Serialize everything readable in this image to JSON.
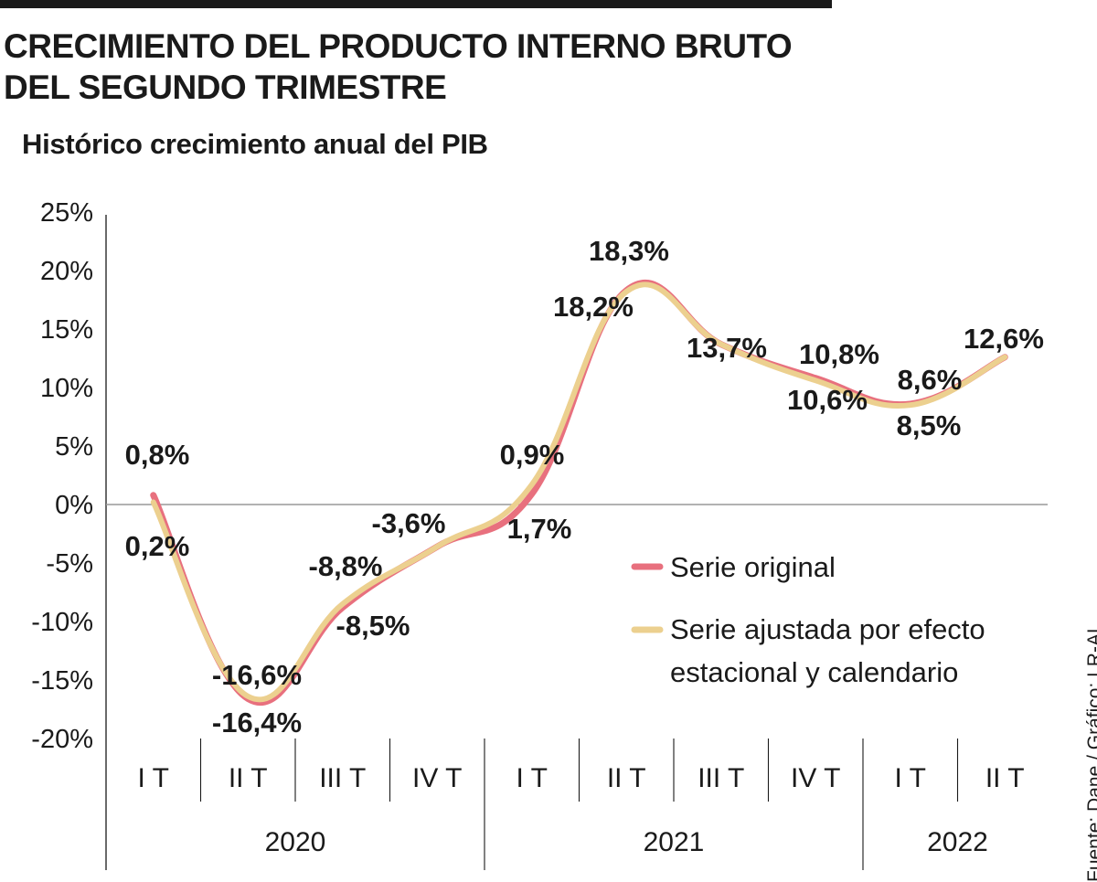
{
  "title": "CRECIMIENTO DEL PRODUCTO INTERNO BRUTO DEL SEGUNDO TRIMESTRE",
  "subtitle": "Histórico crecimiento anual del PIB",
  "source": "Fuente: Dane / Gráfico: LR-AL",
  "chart_data": {
    "type": "line",
    "title": "Histórico crecimiento anual del PIB",
    "categories": [
      "I T",
      "II T",
      "III T",
      "IV T",
      "I T",
      "II T",
      "III T",
      "IV T",
      "I T",
      "II T"
    ],
    "years": [
      {
        "label": "2020",
        "quarters": 4
      },
      {
        "label": "2021",
        "quarters": 4
      },
      {
        "label": "2022",
        "quarters": 2
      }
    ],
    "y_ticks": [
      "25%",
      "20%",
      "15%",
      "10%",
      "5%",
      "0%",
      "-5%",
      "-10%",
      "-15%",
      "-20%"
    ],
    "ylim": [
      -20,
      25
    ],
    "colors": {
      "original": "#e8707e",
      "ajustada": "#ecd08f",
      "axis": "#1a1a1a",
      "grid": "#999999"
    },
    "series": [
      {
        "name": "Serie original",
        "values": [
          0.8,
          -16.6,
          -8.8,
          -3.6,
          0.9,
          18.3,
          13.7,
          10.8,
          8.6,
          12.6
        ]
      },
      {
        "name": "Serie ajustada por efecto estacional y calendario",
        "values": [
          0.2,
          -16.4,
          -8.5,
          -3.6,
          1.7,
          18.2,
          13.7,
          10.6,
          8.5,
          12.6
        ]
      }
    ],
    "data_labels": [
      "0,8%",
      "0,2%",
      "-16,6%",
      "-16,4%",
      "-8,8%",
      "-8,5%",
      "-3,6%",
      "0,9%",
      "1,7%",
      "18,3%",
      "18,2%",
      "13,7%",
      "10,8%",
      "10,6%",
      "8,6%",
      "8,5%",
      "12,6%"
    ],
    "legend": {
      "original": "Serie original",
      "ajustada_line1": "Serie ajustada por efecto",
      "ajustada_line2": "estacional y calendario"
    }
  }
}
